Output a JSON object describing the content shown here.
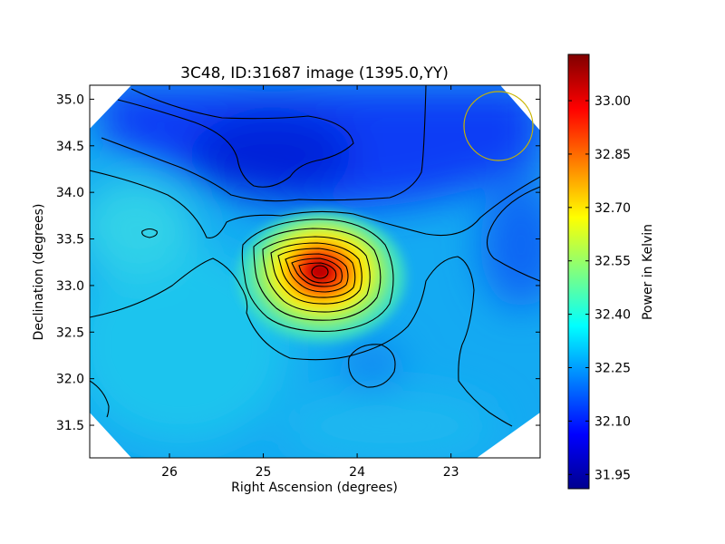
{
  "chart_data": {
    "type": "heatmap",
    "title": "3C48, ID:31687 image (1395.0,YY)",
    "xlabel": "Right Ascension (degrees)",
    "ylabel": "Declination (degrees)",
    "xlim": [
      26.85,
      22.05
    ],
    "ylim": [
      31.15,
      35.15
    ],
    "x_ticks": [
      26,
      25,
      24,
      23
    ],
    "x_tick_labels": [
      "26",
      "25",
      "24",
      "23"
    ],
    "y_ticks": [
      31.5,
      32.0,
      32.5,
      33.0,
      33.5,
      34.0,
      34.5,
      35.0
    ],
    "y_tick_labels": [
      "31.5",
      "32.0",
      "32.5",
      "33.0",
      "33.5",
      "34.0",
      "34.5",
      "35.0"
    ],
    "colorbar": {
      "label": "Power in Kelvin",
      "range": [
        31.91,
        33.13
      ],
      "ticks": [
        31.95,
        32.1,
        32.25,
        32.4,
        32.55,
        32.7,
        32.85,
        33.0
      ],
      "tick_labels": [
        "31.95",
        "32.10",
        "32.25",
        "32.40",
        "32.55",
        "32.70",
        "32.85",
        "33.00"
      ],
      "colormap": "jet"
    },
    "background_level": 32.22,
    "features": [
      {
        "kind": "peak",
        "ra": 24.38,
        "dec": 33.15,
        "value": 33.12
      },
      {
        "kind": "trough",
        "ra": 24.95,
        "dec": 34.45,
        "value": 31.98
      },
      {
        "kind": "secondary-high",
        "ra": 26.3,
        "dec": 33.55,
        "value": 32.35
      },
      {
        "kind": "minor-low",
        "ra": 23.95,
        "dec": 32.15,
        "value": 32.16
      }
    ],
    "beam_marker": {
      "ra": 22.48,
      "dec": 34.72,
      "radius_deg": 0.37,
      "color": "#c8b400"
    },
    "grid": false,
    "legend": "none"
  }
}
